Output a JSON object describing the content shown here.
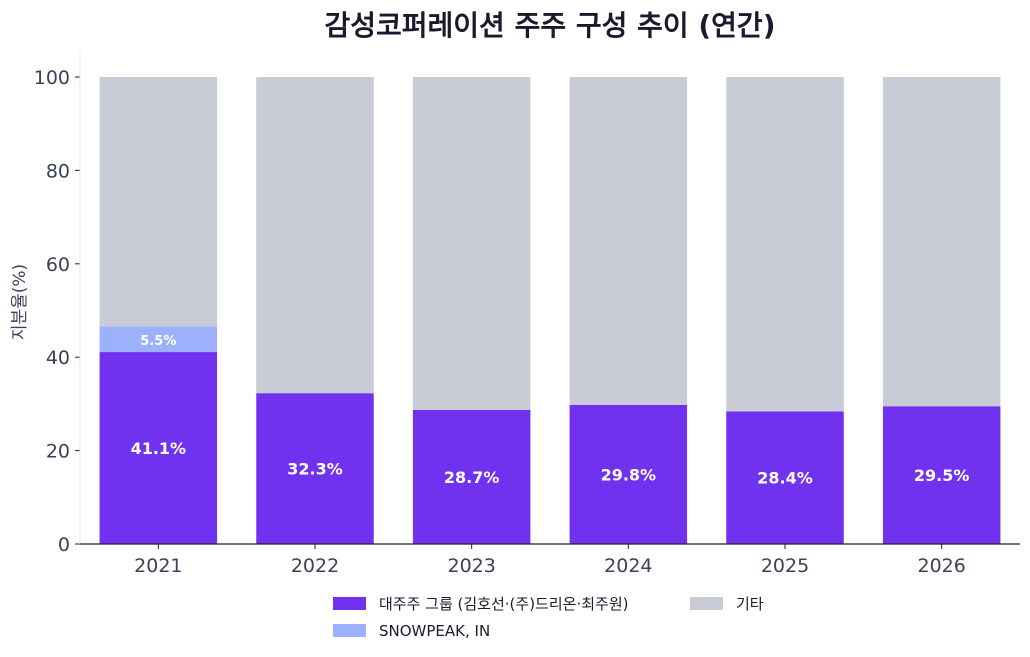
{
  "chart_data": {
    "type": "bar",
    "stacked": true,
    "title": "감성코퍼레이션 주주 구성 추이 (연간)",
    "xlabel": "",
    "ylabel": "지분율(%)",
    "ylim": [
      0,
      100
    ],
    "yticks": [
      "0",
      "20",
      "40",
      "60",
      "80",
      "100"
    ],
    "categories": [
      "2021",
      "2022",
      "2023",
      "2024",
      "2025",
      "2026"
    ],
    "series": [
      {
        "name": "대주주 그룹 (김호선·(주)드리온·최주원)",
        "color": "#7132f0",
        "values": [
          41.1,
          32.3,
          28.7,
          29.8,
          28.4,
          29.5
        ],
        "labels": [
          "41.1%",
          "32.3%",
          "28.7%",
          "29.8%",
          "28.4%",
          "29.5%"
        ]
      },
      {
        "name": "SNOWPEAK, IN",
        "color": "#9db0fb",
        "values": [
          5.5,
          0,
          0,
          0,
          0,
          0
        ],
        "labels": [
          "5.5%",
          "",
          "",
          "",
          "",
          ""
        ]
      },
      {
        "name": "기타",
        "color": "#c9ccd6",
        "values": [
          53.4,
          67.7,
          71.3,
          70.2,
          71.6,
          70.5
        ],
        "labels": [
          "",
          "",
          "",
          "",
          "",
          ""
        ]
      }
    ],
    "legend_position": "bottom",
    "grid": false
  }
}
